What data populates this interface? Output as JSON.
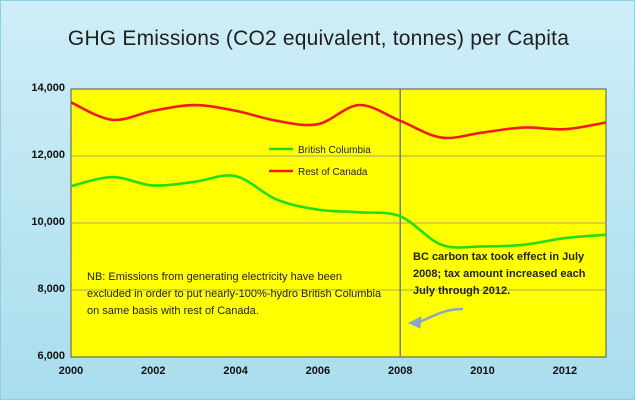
{
  "chart_data": {
    "type": "line",
    "title": "GHG Emissions (CO2 equivalent, tonnes) per Capita",
    "x_ticks": [
      "2000",
      "2002",
      "2004",
      "2006",
      "2008",
      "2010",
      "2012"
    ],
    "y_ticks": [
      "6,000",
      "8,000",
      "10,000",
      "12,000",
      "14,000"
    ],
    "xlim": [
      2000,
      2013
    ],
    "ylim": [
      6000,
      14000
    ],
    "grid": true,
    "legend_position": "upper-middle",
    "series": [
      {
        "name": "British Columbia",
        "color": "#22dd11",
        "x": [
          2000,
          2001,
          2002,
          2003,
          2004,
          2005,
          2006,
          2007,
          2008,
          2009,
          2010,
          2011,
          2012,
          2013
        ],
        "y": [
          11100,
          11370,
          11120,
          11230,
          11400,
          10700,
          10400,
          10320,
          10200,
          9350,
          9300,
          9350,
          9550,
          9650
        ]
      },
      {
        "name": "Rest of Canada",
        "color": "#ee1c1c",
        "x": [
          2000,
          2001,
          2002,
          2003,
          2004,
          2005,
          2006,
          2007,
          2008,
          2009,
          2010,
          2011,
          2012,
          2013
        ],
        "y": [
          13600,
          13080,
          13350,
          13520,
          13350,
          13050,
          12950,
          13520,
          13050,
          12550,
          12700,
          12850,
          12800,
          13000
        ]
      }
    ],
    "vertical_marker": {
      "x": 2008,
      "color": "#6b7f99"
    },
    "annotations": {
      "note": "NB: Emissions from generating electricity have been excluded in order to put nearly-100%-hydro British Columbia on same basis with rest of Canada.",
      "carbon_tax": "BC carbon tax took effect in July 2008; tax amount increased each July through 2012."
    }
  }
}
